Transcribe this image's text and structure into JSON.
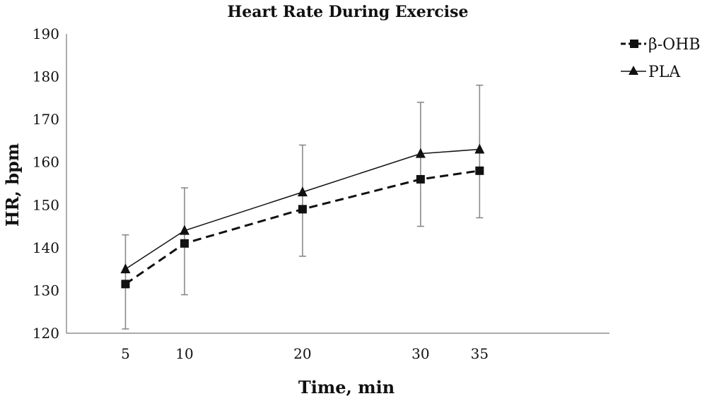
{
  "chart_data": {
    "type": "line",
    "title": "Heart Rate During Exercise",
    "xlabel": "Time, min",
    "ylabel": "HR, bpm",
    "x": [
      5,
      10,
      20,
      30,
      35
    ],
    "x_tick_labels": [
      "5",
      "10",
      "20",
      "30",
      "35"
    ],
    "y_tick_labels": [
      "120",
      "130",
      "140",
      "150",
      "160",
      "170",
      "180",
      "190"
    ],
    "ylim": [
      120,
      190
    ],
    "xlim": [
      0,
      46
    ],
    "grid": false,
    "legend_position": "top-right",
    "series": [
      {
        "name": "β-OHB",
        "values": [
          131.5,
          141,
          149,
          156,
          158
        ],
        "marker": "square",
        "line_style": "dashed",
        "color": "#111111"
      },
      {
        "name": "PLA",
        "values": [
          135,
          144,
          153,
          162,
          163
        ],
        "marker": "triangle",
        "line_style": "solid",
        "color": "#111111",
        "error_low": [
          121,
          129,
          138,
          145,
          147
        ],
        "error_high": [
          143,
          154,
          164,
          174,
          178
        ]
      }
    ]
  }
}
